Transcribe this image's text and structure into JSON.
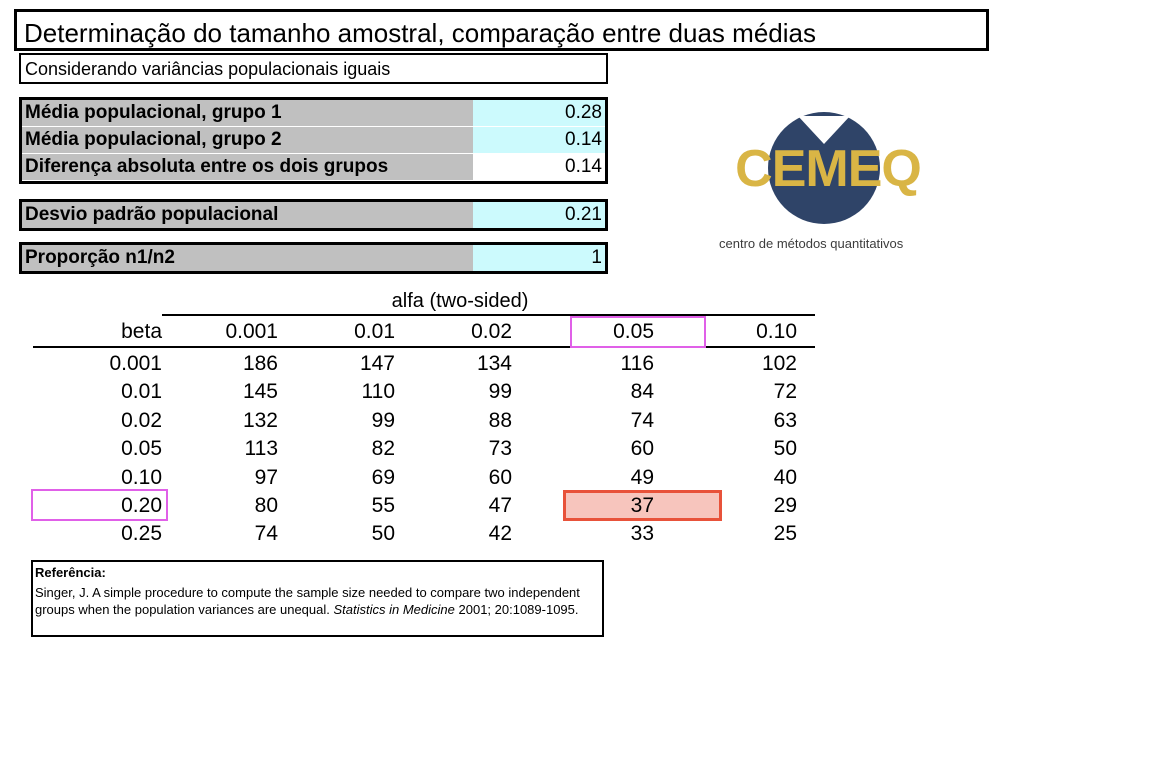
{
  "title": "Determinação do tamanho amostral, comparação entre duas médias",
  "subtitle": "Considerando variâncias populacionais iguais",
  "parameters": [
    {
      "label": "Média populacional, grupo 1",
      "value": "0.28"
    },
    {
      "label": "Média populacional, grupo 2",
      "value": "0.14"
    },
    {
      "label": "Diferença absoluta entre os dois grupos",
      "value": "0.14"
    },
    {
      "label": "Desvio padrão populacional",
      "value": "0.21"
    },
    {
      "label": "Proporção n1/n2",
      "value": "1"
    }
  ],
  "logo": {
    "text": "CEMEQ",
    "tagline": "centro de métodos quantitativos",
    "colors": {
      "navy": "#2f4468",
      "gold": "#d9b545"
    }
  },
  "table": {
    "alfa_header": "alfa (two-sided)",
    "beta_header": "beta",
    "alfa_values": [
      "0.001",
      "0.01",
      "0.02",
      "0.05",
      "0.10"
    ],
    "rows": [
      {
        "beta": "0.001",
        "values": [
          "186",
          "147",
          "134",
          "116",
          "102"
        ]
      },
      {
        "beta": "0.01",
        "values": [
          "145",
          "110",
          "99",
          "84",
          "72"
        ]
      },
      {
        "beta": "0.02",
        "values": [
          "132",
          "99",
          "88",
          "74",
          "63"
        ]
      },
      {
        "beta": "0.05",
        "values": [
          "113",
          "82",
          "73",
          "60",
          "50"
        ]
      },
      {
        "beta": "0.10",
        "values": [
          "97",
          "69",
          "60",
          "49",
          "40"
        ]
      },
      {
        "beta": "0.20",
        "values": [
          "80",
          "55",
          "47",
          "37",
          "29"
        ]
      },
      {
        "beta": "0.25",
        "values": [
          "74",
          "50",
          "42",
          "33",
          "25"
        ]
      }
    ],
    "highlight": {
      "alfa": "0.05",
      "beta": "0.20",
      "result": "37"
    },
    "colors": {
      "selection_outline": "#e060e8",
      "result_outline": "#e8523a",
      "result_fill": "#f7c5bd"
    }
  },
  "reference": {
    "title": "Referência:",
    "text_before": "Singer, J. A simple procedure to compute the sample size needed to compare two independent groups when the population variances are unequal. ",
    "journal": "Statistics in Medicine",
    "text_after": " 2001; 20:1089-1095."
  }
}
